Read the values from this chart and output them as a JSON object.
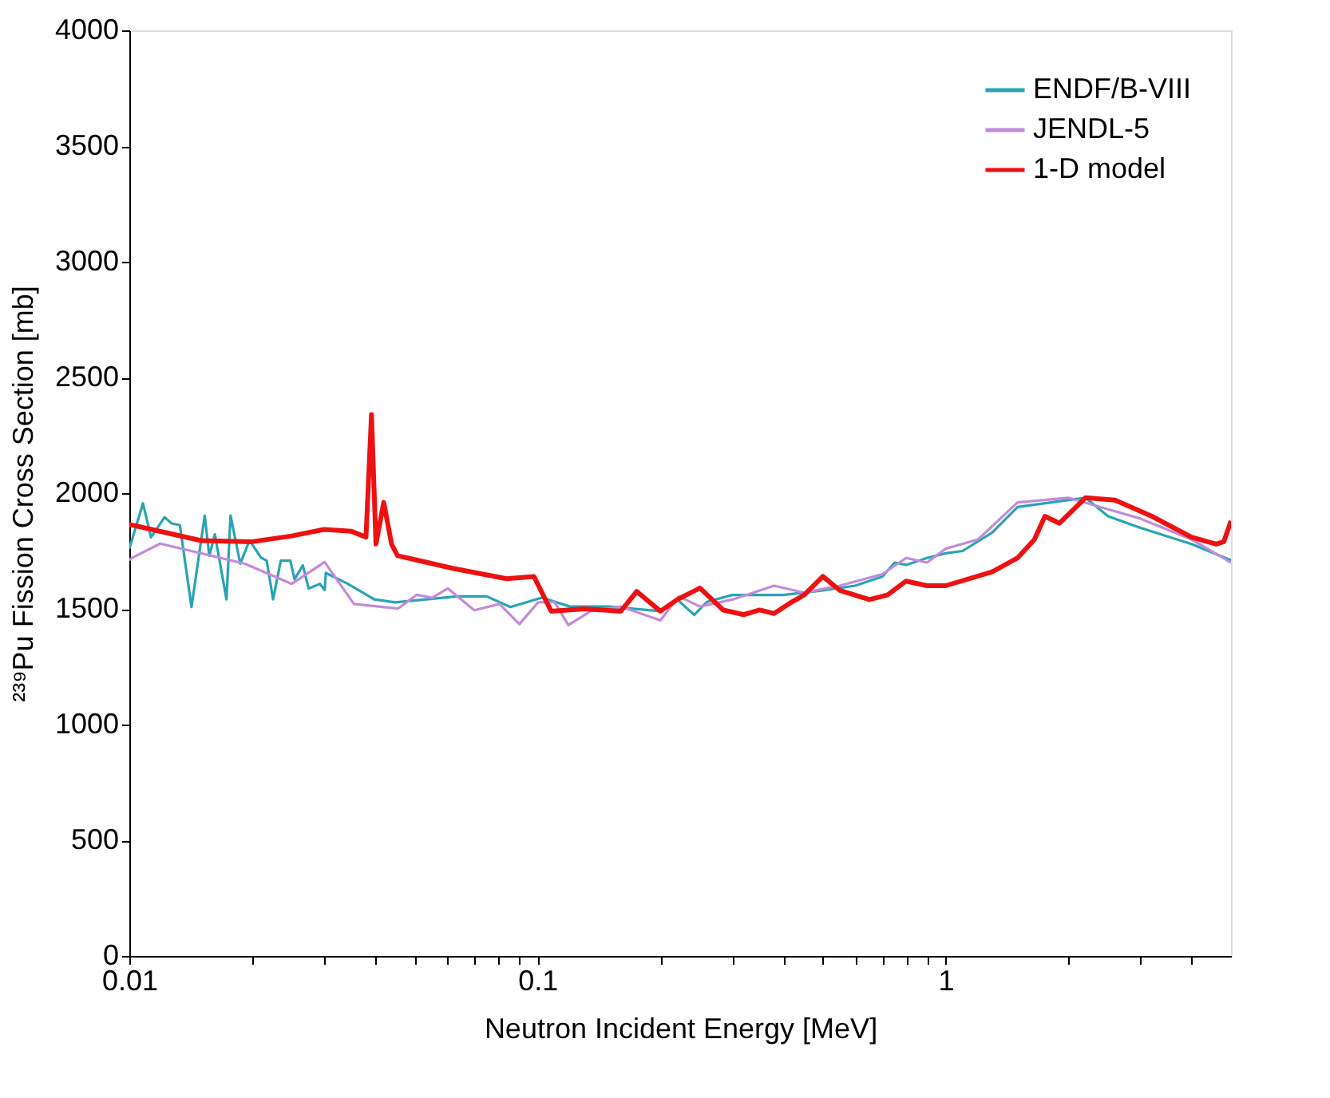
{
  "chart_data": {
    "type": "line",
    "xlabel": "Neutron Incident Energy [MeV]",
    "ylabel": "²³⁹Pu Fission Cross Section [mb]",
    "log": "x",
    "xlim": [
      0.01,
      5
    ],
    "ylim": [
      0,
      4000
    ],
    "xticks": [
      0.01,
      {
        "value": 0.02,
        "label": null
      },
      {
        "value": 0.03,
        "label": null
      },
      {
        "value": 0.04,
        "label": null
      },
      {
        "value": 0.05,
        "label": null
      },
      {
        "value": 0.06,
        "label": null
      },
      {
        "value": 0.07,
        "label": null
      },
      {
        "value": 0.08,
        "label": null
      },
      {
        "value": 0.09,
        "label": null
      },
      0.1,
      {
        "value": 0.2,
        "label": null
      },
      {
        "value": 0.3,
        "label": null
      },
      {
        "value": 0.4,
        "label": null
      },
      {
        "value": 0.5,
        "label": null
      },
      {
        "value": 0.6,
        "label": null
      },
      {
        "value": 0.7,
        "label": null
      },
      {
        "value": 0.8,
        "label": null
      },
      {
        "value": 0.9,
        "label": null
      },
      1,
      {
        "value": 2,
        "label": null
      },
      {
        "value": 3,
        "label": null
      },
      {
        "value": 4,
        "label": null
      }
    ],
    "yticks": [
      0,
      500,
      1000,
      1500,
      2000,
      2500,
      3000,
      3500,
      4000
    ],
    "grid": false,
    "legend": "top right",
    "line_style": "solid",
    "marker": "none",
    "series": [
      {
        "name": "ENDF/B-VIII",
        "color": "#2aa3b5",
        "x": [
          0.01,
          0.0108,
          0.0113,
          0.0122,
          0.0127,
          0.0133,
          0.0142,
          0.0153,
          0.0157,
          0.0162,
          0.0173,
          0.0177,
          0.0187,
          0.0197,
          0.021,
          0.0217,
          0.0225,
          0.0235,
          0.0248,
          0.0254,
          0.0266,
          0.0275,
          0.0293,
          0.0301,
          0.0303,
          0.0343,
          0.0398,
          0.0448,
          0.0636,
          0.0751,
          0.0858,
          0.1025,
          0.12,
          0.15,
          0.2,
          0.22,
          0.242,
          0.26,
          0.3,
          0.4,
          0.5,
          0.6,
          0.7,
          0.75,
          0.8,
          0.9,
          1.0,
          1.1,
          1.3,
          1.5,
          2.0,
          2.2,
          2.5,
          3,
          4,
          5
        ],
        "values": [
          1760,
          1956,
          1809,
          1896,
          1869,
          1862,
          1508,
          1903,
          1729,
          1822,
          1541,
          1903,
          1695,
          1796,
          1722,
          1708,
          1541,
          1708,
          1708,
          1628,
          1688,
          1588,
          1608,
          1581,
          1655,
          1608,
          1541,
          1528,
          1554,
          1554,
          1508,
          1548,
          1510,
          1510,
          1490,
          1540,
          1474,
          1530,
          1560,
          1560,
          1580,
          1600,
          1640,
          1700,
          1690,
          1720,
          1740,
          1750,
          1830,
          1940,
          1970,
          1980,
          1900,
          1850,
          1780,
          1710
        ]
      },
      {
        "name": "JENDL-5",
        "color": "#c38bdb",
        "x": [
          0.01,
          0.0102,
          0.0119,
          0.0192,
          0.025,
          0.0301,
          0.0355,
          0.0455,
          0.0506,
          0.0552,
          0.0603,
          0.07,
          0.0807,
          0.0903,
          0.1003,
          0.11,
          0.119,
          0.135,
          0.16,
          0.2,
          0.222,
          0.25,
          0.3,
          0.38,
          0.45,
          0.55,
          0.7,
          0.8,
          0.9,
          1.0,
          1.2,
          1.5,
          2.0,
          2.5,
          3,
          4,
          5
        ],
        "values": [
          1710,
          1722,
          1782,
          1695,
          1608,
          1702,
          1521,
          1501,
          1561,
          1548,
          1588,
          1494,
          1521,
          1434,
          1528,
          1530,
          1430,
          1490,
          1510,
          1450,
          1554,
          1510,
          1540,
          1600,
          1570,
          1600,
          1650,
          1720,
          1700,
          1760,
          1800,
          1960,
          1980,
          1930,
          1890,
          1800,
          1700
        ]
      },
      {
        "name": "1-D model",
        "color": "#ee1111",
        "x": [
          0.01,
          0.015,
          0.02,
          0.025,
          0.03,
          0.035,
          0.038,
          0.0392,
          0.0402,
          0.042,
          0.0439,
          0.0454,
          0.062,
          0.084,
          0.098,
          0.108,
          0.13,
          0.16,
          0.175,
          0.2,
          0.22,
          0.25,
          0.285,
          0.32,
          0.35,
          0.38,
          0.42,
          0.45,
          0.5,
          0.55,
          0.65,
          0.72,
          0.8,
          0.9,
          1.0,
          1.3,
          1.5,
          1.65,
          1.75,
          1.9,
          2.2,
          2.6,
          3.2,
          4.0,
          4.6,
          4.8,
          5
        ],
        "values": [
          1865,
          1795,
          1790,
          1815,
          1843,
          1835,
          1810,
          2340,
          1780,
          1960,
          1780,
          1730,
          1675,
          1630,
          1640,
          1490,
          1500,
          1490,
          1575,
          1490,
          1540,
          1590,
          1495,
          1475,
          1495,
          1480,
          1530,
          1560,
          1640,
          1580,
          1540,
          1560,
          1620,
          1600,
          1600,
          1660,
          1720,
          1800,
          1900,
          1870,
          1980,
          1970,
          1900,
          1810,
          1780,
          1790,
          1880
        ]
      }
    ]
  }
}
